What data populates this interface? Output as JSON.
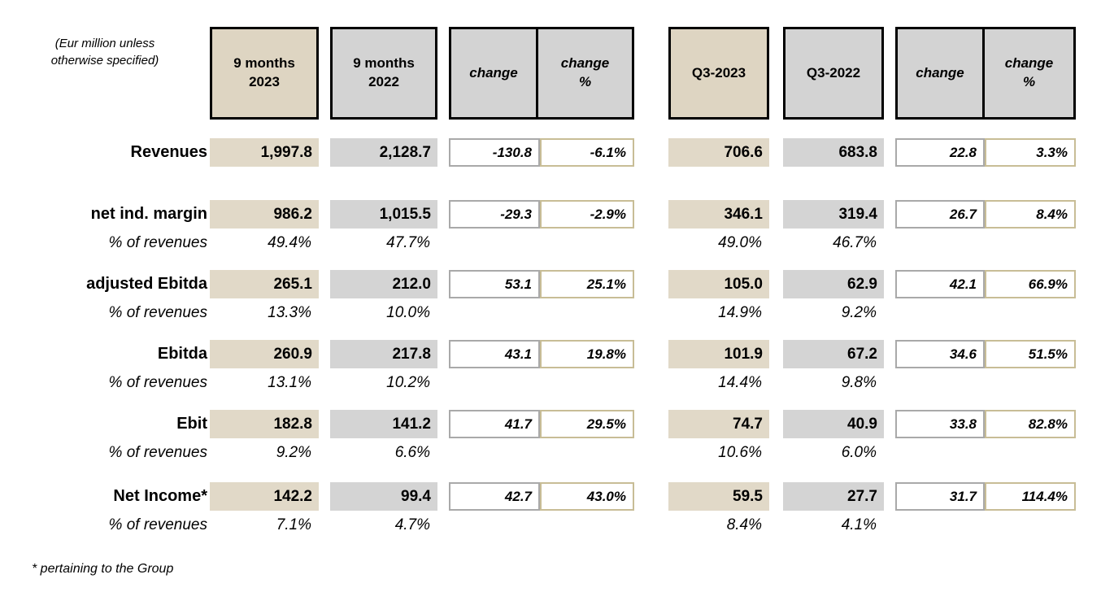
{
  "note": "(Eur million unless\notherwise specified)",
  "footnote": "* pertaining to the Group",
  "colors": {
    "header_beige": "#ded5c2",
    "header_gray": "#d3d3d3",
    "cell_beige": "#e1d9c8",
    "cell_gray": "#d4d4d4",
    "change_border_silver": "#a9a9a9",
    "change_pct_border_tan": "#c8bd96",
    "border_black": "#000000"
  },
  "header": {
    "nine_2023": "9 months\n2023",
    "nine_2022": "9 months\n2022",
    "change": "change",
    "change_pct": "change\n%",
    "q3_2023": "Q3-2023",
    "q3_2022": "Q3-2022"
  },
  "rows": [
    {
      "label": "Revenues",
      "nine_2023": "1,997.8",
      "nine_2022": "2,128.7",
      "change": "-130.8",
      "change_pct": "-6.1%",
      "q3_2023": "706.6",
      "q3_2022": "683.8",
      "q_change": "22.8",
      "q_change_pct": "3.3%"
    },
    {
      "label": "net ind. margin",
      "nine_2023": "986.2",
      "nine_2022": "1,015.5",
      "change": "-29.3",
      "change_pct": "-2.9%",
      "q3_2023": "346.1",
      "q3_2022": "319.4",
      "q_change": "26.7",
      "q_change_pct": "8.4%",
      "pct_label": "% of revenues",
      "pct_nine_2023": "49.4%",
      "pct_nine_2022": "47.7%",
      "pct_q3_2023": "49.0%",
      "pct_q3_2022": "46.7%"
    },
    {
      "label": "adjusted Ebitda",
      "nine_2023": "265.1",
      "nine_2022": "212.0",
      "change": "53.1",
      "change_pct": "25.1%",
      "q3_2023": "105.0",
      "q3_2022": "62.9",
      "q_change": "42.1",
      "q_change_pct": "66.9%",
      "pct_label": "% of revenues",
      "pct_nine_2023": "13.3%",
      "pct_nine_2022": "10.0%",
      "pct_q3_2023": "14.9%",
      "pct_q3_2022": "9.2%"
    },
    {
      "label": "Ebitda",
      "nine_2023": "260.9",
      "nine_2022": "217.8",
      "change": "43.1",
      "change_pct": "19.8%",
      "q3_2023": "101.9",
      "q3_2022": "67.2",
      "q_change": "34.6",
      "q_change_pct": "51.5%",
      "pct_label": "% of revenues",
      "pct_nine_2023": "13.1%",
      "pct_nine_2022": "10.2%",
      "pct_q3_2023": "14.4%",
      "pct_q3_2022": "9.8%"
    },
    {
      "label": "Ebit",
      "nine_2023": "182.8",
      "nine_2022": "141.2",
      "change": "41.7",
      "change_pct": "29.5%",
      "q3_2023": "74.7",
      "q3_2022": "40.9",
      "q_change": "33.8",
      "q_change_pct": "82.8%",
      "pct_label": "% of revenues",
      "pct_nine_2023": "9.2%",
      "pct_nine_2022": "6.6%",
      "pct_q3_2023": "10.6%",
      "pct_q3_2022": "6.0%"
    },
    {
      "label": "Net Income*",
      "nine_2023": "142.2",
      "nine_2022": "99.4",
      "change": "42.7",
      "change_pct": "43.0%",
      "q3_2023": "59.5",
      "q3_2022": "27.7",
      "q_change": "31.7",
      "q_change_pct": "114.4%",
      "pct_label": "% of revenues",
      "pct_nine_2023": "7.1%",
      "pct_nine_2022": "4.7%",
      "pct_q3_2023": "8.4%",
      "pct_q3_2022": "4.1%"
    }
  ]
}
